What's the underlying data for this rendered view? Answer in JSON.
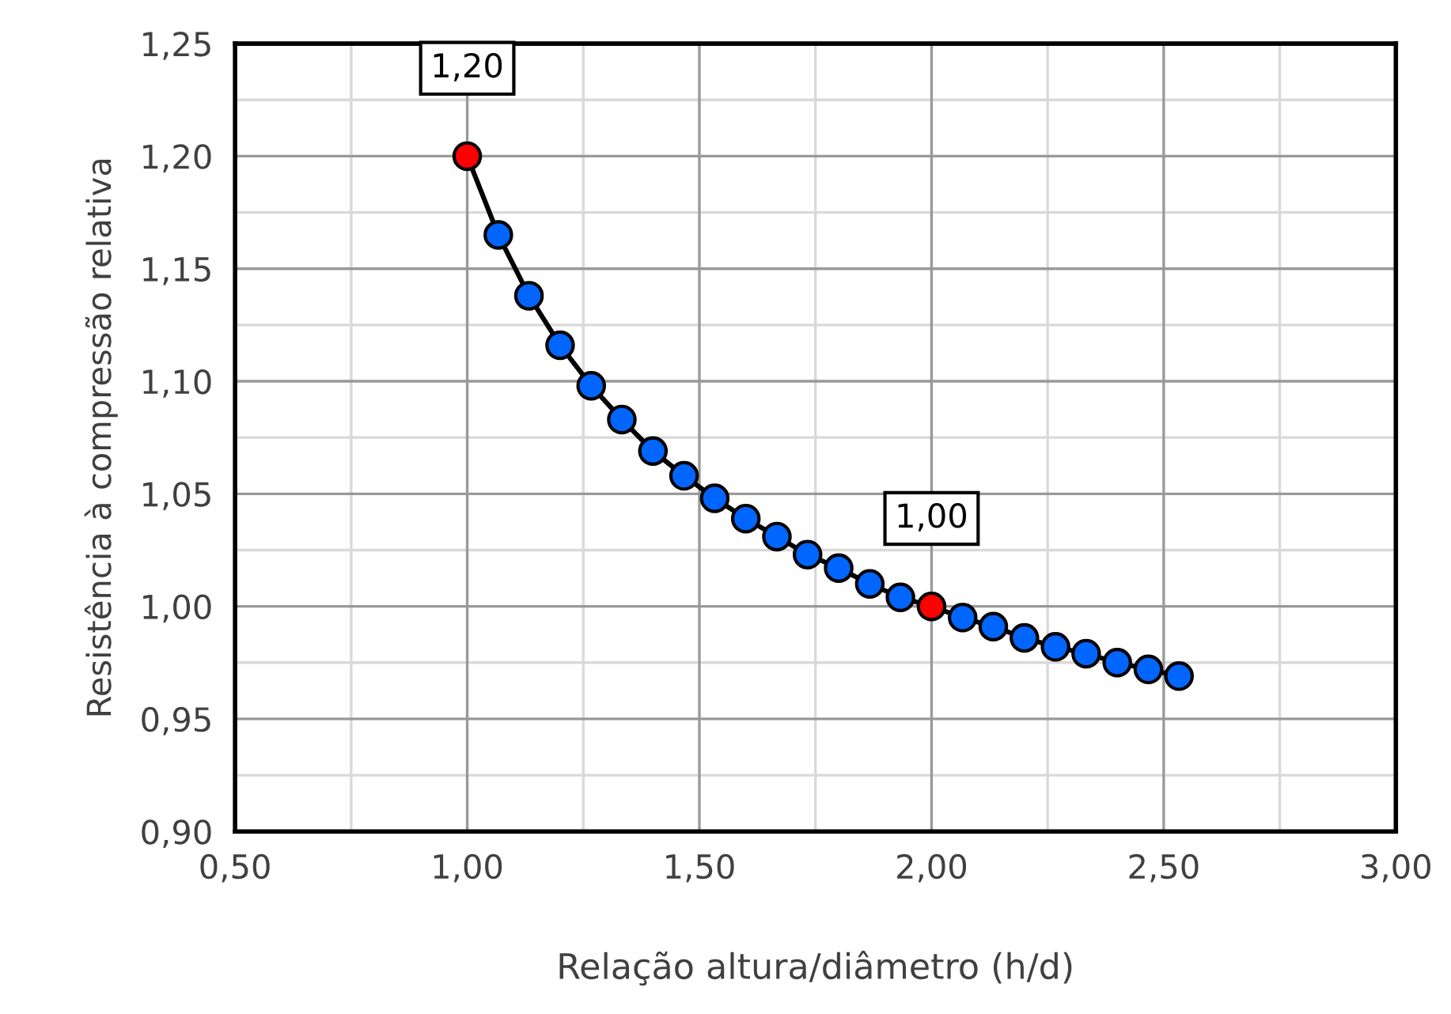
{
  "chart_data": {
    "type": "line",
    "xlabel": "Relação altura/diâmetro (h/d)",
    "ylabel": "Resistência à compressão relativa",
    "x": [
      1.0,
      1.067,
      1.133,
      1.2,
      1.267,
      1.333,
      1.4,
      1.467,
      1.533,
      1.6,
      1.667,
      1.733,
      1.8,
      1.867,
      1.933,
      2.0,
      2.067,
      2.133,
      2.2,
      2.267,
      2.333,
      2.4,
      2.467,
      2.533
    ],
    "series": [
      {
        "color": "#000000",
        "colors": [
          "#ff0000",
          "#0066ff",
          "#0066ff",
          "#0066ff",
          "#0066ff",
          "#0066ff",
          "#0066ff",
          "#0066ff",
          "#0066ff",
          "#0066ff",
          "#0066ff",
          "#0066ff",
          "#0066ff",
          "#0066ff",
          "#0066ff",
          "#ff0000",
          "#0066ff",
          "#0066ff",
          "#0066ff",
          "#0066ff",
          "#0066ff",
          "#0066ff",
          "#0066ff",
          "#0066ff"
        ],
        "values": [
          1.2,
          1.165,
          1.138,
          1.116,
          1.098,
          1.083,
          1.069,
          1.058,
          1.048,
          1.039,
          1.031,
          1.023,
          1.017,
          1.01,
          1.004,
          1.0,
          0.995,
          0.991,
          0.986,
          0.982,
          0.979,
          0.975,
          0.972,
          0.969
        ]
      }
    ],
    "annotations": [
      {
        "text": "1,20",
        "x": 1.0,
        "y": 1.2
      },
      {
        "text": "1,00",
        "x": 2.0,
        "y": 1.0
      }
    ],
    "marker": "circle",
    "line_style": "solid",
    "grid": true,
    "xlim": [
      0.5,
      3.0
    ],
    "xticks": [
      {
        "value": 0.5,
        "label": "0,50"
      },
      {
        "value": 1.0,
        "label": "1,00"
      },
      {
        "value": 1.5,
        "label": "1,50"
      },
      {
        "value": 2.0,
        "label": "2,00"
      },
      {
        "value": 2.5,
        "label": "2,50"
      },
      {
        "value": 3.0,
        "label": "3,00"
      }
    ],
    "ylim": [
      0.9,
      1.25
    ],
    "yticks": [
      {
        "value": 0.9,
        "label": "0,90"
      },
      {
        "value": 0.95,
        "label": "0,95"
      },
      {
        "value": 1.0,
        "label": "1,00"
      },
      {
        "value": 1.05,
        "label": "1,05"
      },
      {
        "value": 1.1,
        "label": "1,10"
      },
      {
        "value": 1.15,
        "label": "1,15"
      },
      {
        "value": 1.2,
        "label": "1,20"
      },
      {
        "value": 1.25,
        "label": "1,25"
      }
    ]
  }
}
